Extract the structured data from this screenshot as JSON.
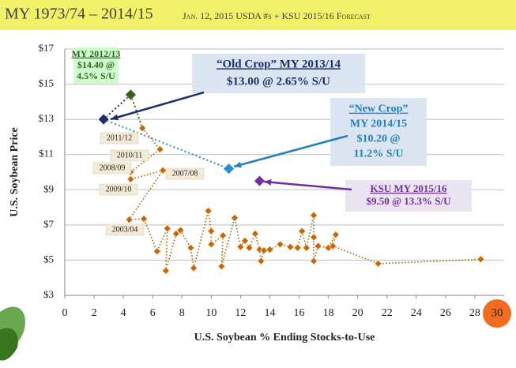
{
  "chart_data": {
    "type": "scatter",
    "title": "MY 1973/74 – 2014/15",
    "subtitle": "Jan. 12, 2015 USDA #s + KSU 2015/16 Forecast",
    "x_label": "U.S. Soybean % Ending Stocks-to-Use",
    "y_label": "U.S. Soybean Price",
    "xlim": [
      0,
      30
    ],
    "xticks": [
      0,
      2,
      4,
      6,
      8,
      10,
      12,
      14,
      16,
      18,
      20,
      22,
      24,
      26,
      28
    ],
    "ylim": [
      3,
      17
    ],
    "yticks": [
      {
        "value": 3,
        "label": "$3"
      },
      {
        "value": 5,
        "label": "$5"
      },
      {
        "value": 7,
        "label": "$7"
      },
      {
        "value": 9,
        "label": "$9"
      },
      {
        "value": 11,
        "label": "$11"
      },
      {
        "value": 13,
        "label": "$13"
      },
      {
        "value": 15,
        "label": "$15"
      },
      {
        "value": 17,
        "label": "$17"
      }
    ],
    "grid": true,
    "series": [
      {
        "color": "#cc6600",
        "x": [
          5.3,
          6.5,
          4.5,
          4.5,
          6.7,
          4.4,
          5.4,
          6.3,
          7.0,
          6.9,
          7.6,
          7.9,
          8.6,
          8.8,
          9.8,
          10.0,
          10.0,
          10.8,
          10.7,
          11.6,
          12.0,
          12.3,
          12.6,
          13.0,
          13.3,
          13.4,
          13.6,
          14.0,
          14.7,
          15.4,
          15.9,
          16.2,
          16.5,
          17.0,
          17.0,
          17.0,
          17.3,
          18.0,
          18.5,
          18.3,
          21.4,
          28.4
        ],
        "y": [
          12.5,
          11.3,
          10.0,
          9.6,
          10.1,
          7.3,
          7.35,
          5.5,
          6.8,
          4.4,
          6.5,
          6.7,
          5.7,
          4.55,
          7.8,
          6.65,
          5.9,
          6.4,
          4.65,
          7.4,
          5.75,
          6.1,
          5.7,
          6.5,
          5.6,
          4.95,
          5.55,
          5.6,
          5.9,
          5.75,
          5.7,
          6.65,
          5.7,
          7.55,
          6.3,
          4.95,
          5.8,
          5.7,
          6.45,
          5.8,
          4.8,
          5.05
        ]
      },
      {
        "color": "#3a5f1e",
        "x": [
          4.5
        ],
        "y": [
          14.4
        ]
      },
      {
        "color": "#1f2d6b",
        "x": [
          2.65
        ],
        "y": [
          13.0
        ]
      },
      {
        "color": "#2e8bd0",
        "x": [
          11.2
        ],
        "y": [
          10.2
        ]
      },
      {
        "color": "#7030a0",
        "x": [
          13.3
        ],
        "y": [
          9.5
        ]
      }
    ],
    "annotations": [
      {
        "lines": [
          "MY 2012/13",
          "$14.40 @",
          "4.5% S/U"
        ],
        "color": "#3a5f1e",
        "background": "#ccffcc"
      },
      {
        "lines": [
          "“Old Crop” MY 2013/14",
          "$13.00 @ 2.65% S/U"
        ],
        "color": "#1f2d6b",
        "background": "#dce6f2"
      },
      {
        "lines": [
          "“New Crop”",
          "MY 2014/15",
          "$10.20 @",
          "11.2% S/U"
        ],
        "color": "#1f7fc0",
        "background": "#dce6f2"
      },
      {
        "lines": [
          "KSU MY 2015/16",
          "$9.50 @ 13.3% S/U"
        ],
        "color": "#7030a0",
        "background": "#ebe4f1"
      }
    ],
    "year_labels": [
      "2011/12",
      "2010/11",
      "2008/09",
      "2009/10",
      "2007/08",
      "2003/04"
    ],
    "page_number": "30"
  }
}
